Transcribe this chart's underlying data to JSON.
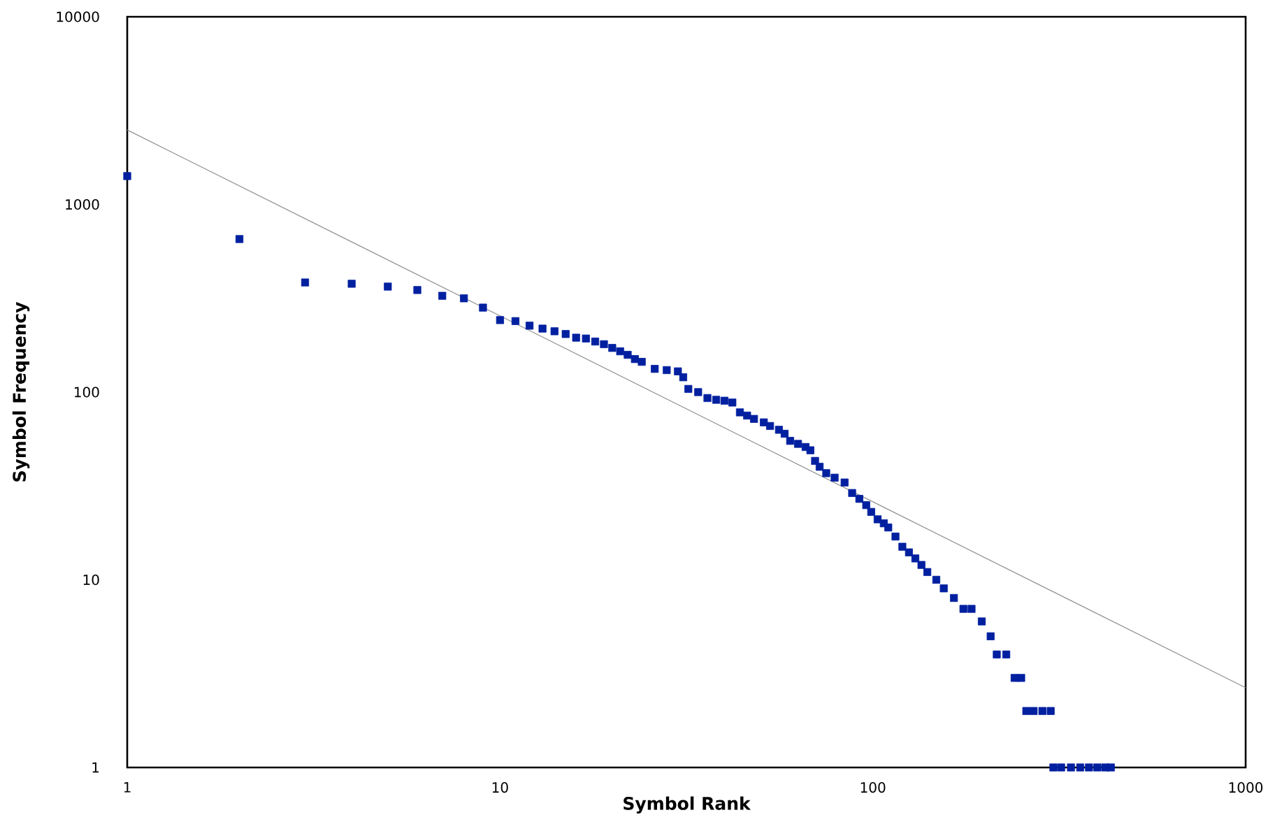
{
  "chart_data": {
    "type": "scatter",
    "xlabel": "Symbol Rank",
    "ylabel": "Symbol Frequency",
    "log": "xy",
    "grid": false,
    "xlim": [
      1,
      1000
    ],
    "ylim": [
      1,
      10000
    ],
    "xticks": [
      1,
      10,
      100,
      1000
    ],
    "yticks": [
      1,
      10,
      100,
      1000,
      10000
    ],
    "series": [
      {
        "marker": "square",
        "color": "#0020a0",
        "x": [
          1,
          2,
          3,
          4,
          5,
          6,
          7,
          8,
          9,
          10,
          11,
          12,
          13,
          14,
          15,
          16,
          17,
          18,
          19,
          20,
          21,
          22,
          23,
          24,
          26,
          28,
          30,
          31,
          32,
          34,
          36,
          38,
          40,
          42,
          44,
          46,
          48,
          51,
          53,
          56,
          58,
          60,
          63,
          66,
          68,
          70,
          72,
          75,
          79,
          84,
          88,
          92,
          96,
          99,
          103,
          107,
          110,
          115,
          120,
          125,
          130,
          135,
          140,
          148,
          155,
          165,
          175,
          184,
          196,
          207,
          215,
          228,
          240,
          250,
          258,
          270,
          285,
          300,
          305,
          320,
          340,
          360,
          380,
          400,
          420,
          435
        ],
        "values": [
          1416,
          654,
          384,
          378,
          365,
          350,
          326,
          316,
          282,
          242,
          239,
          226,
          218,
          211,
          204,
          195,
          193,
          186,
          180,
          172,
          165,
          158,
          150,
          145,
          133,
          131,
          129,
          120,
          104,
          100,
          93,
          91,
          90,
          88,
          78,
          75,
          72,
          69,
          66,
          63,
          60,
          55,
          53,
          51,
          49,
          43,
          40,
          37,
          35,
          33,
          29,
          27,
          25,
          23,
          21,
          20,
          19,
          17,
          15,
          14,
          13,
          12,
          11,
          10,
          9,
          8,
          7,
          7,
          6,
          5,
          4,
          4,
          3,
          3,
          2,
          2,
          2,
          2,
          1,
          1,
          1,
          1,
          1,
          1,
          1,
          1
        ]
      },
      {
        "type": "line",
        "marker": "none",
        "color": "#909090",
        "x": [
          1,
          1000
        ],
        "values": [
          2494,
          2.66
        ]
      }
    ]
  }
}
